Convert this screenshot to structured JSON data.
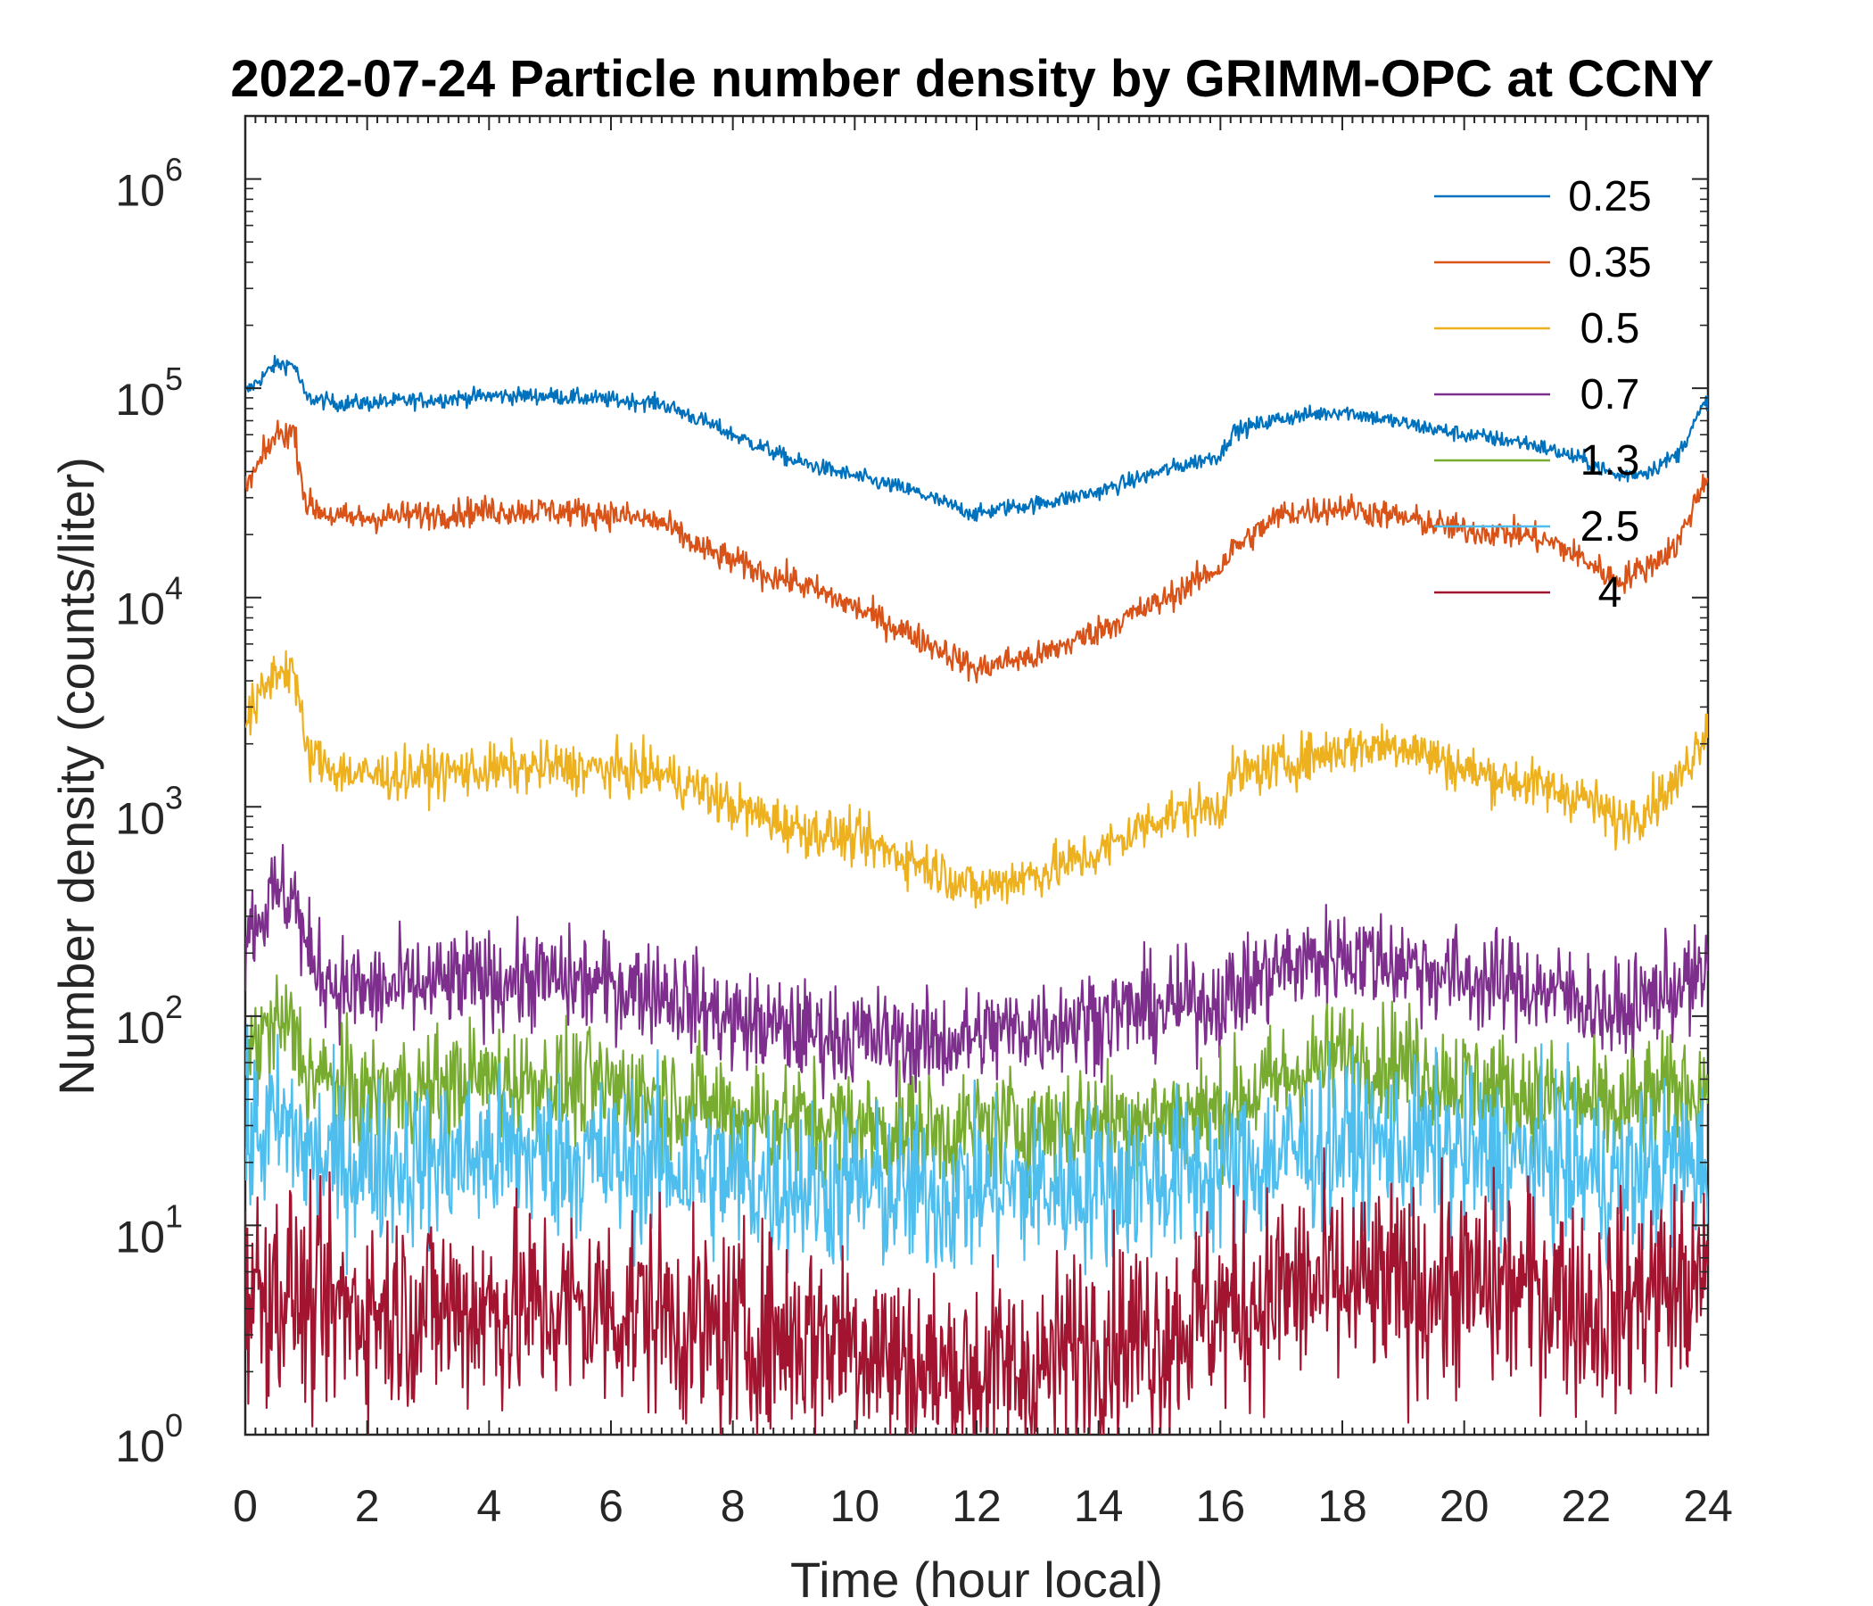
{
  "chart_data": {
    "type": "line",
    "title": "2022-07-24 Particle number density by GRIMM-OPC at CCNY",
    "xlabel": "Time (hour local)",
    "ylabel": "Number density (counts/liter)",
    "xlim": [
      0,
      24
    ],
    "ylim": [
      1,
      2000000
    ],
    "yscale": "log",
    "x_ticks": [
      "0",
      "2",
      "4",
      "6",
      "8",
      "10",
      "12",
      "14",
      "16",
      "18",
      "20",
      "22",
      "24"
    ],
    "y_ticks": [
      {
        "base": "10",
        "exp": "0"
      },
      {
        "base": "10",
        "exp": "1"
      },
      {
        "base": "10",
        "exp": "2"
      },
      {
        "base": "10",
        "exp": "3"
      },
      {
        "base": "10",
        "exp": "4"
      },
      {
        "base": "10",
        "exp": "5"
      },
      {
        "base": "10",
        "exp": "6"
      }
    ],
    "legend_position": "top-right",
    "grid": false,
    "x": [
      0,
      0.5,
      0.8,
      1,
      1.5,
      2,
      3,
      4,
      5,
      6,
      6.8,
      7.5,
      8,
      8.5,
      9,
      10,
      11,
      11.5,
      12,
      12.5,
      13,
      14,
      15,
      16,
      16.2,
      17,
      18,
      19,
      20,
      21,
      21.5,
      22,
      22.5,
      23,
      23.5,
      24
    ],
    "series": [
      {
        "name": "0.25",
        "color": "#0072BD",
        "noise": 0.02,
        "values": [
          95000,
          130000,
          130000,
          90000,
          85000,
          85000,
          88000,
          92000,
          92000,
          88000,
          85000,
          70000,
          60000,
          52000,
          45000,
          38000,
          32000,
          28000,
          25000,
          27000,
          28000,
          32000,
          40000,
          48000,
          62000,
          72000,
          78000,
          68000,
          60000,
          55000,
          50000,
          45000,
          38000,
          40000,
          48000,
          90000
        ]
      },
      {
        "name": "0.35",
        "color": "#D95319",
        "noise": 0.035,
        "values": [
          33000,
          60000,
          62000,
          28000,
          24000,
          24000,
          25000,
          26000,
          26000,
          25000,
          23000,
          17000,
          15000,
          13000,
          12000,
          9000,
          6500,
          5500,
          4500,
          5000,
          5200,
          7000,
          9500,
          14000,
          17000,
          25000,
          27000,
          24000,
          21000,
          20000,
          18000,
          15000,
          12000,
          14000,
          18000,
          40000
        ]
      },
      {
        "name": "0.5",
        "color": "#EDB120",
        "noise": 0.06,
        "values": [
          2500,
          4500,
          4600,
          1800,
          1500,
          1400,
          1450,
          1500,
          1550,
          1500,
          1450,
          1200,
          1000,
          900,
          800,
          700,
          550,
          480,
          400,
          450,
          480,
          600,
          900,
          1000,
          1400,
          1600,
          1900,
          2000,
          1500,
          1300,
          1200,
          1100,
          850,
          1000,
          1300,
          2500
        ]
      },
      {
        "name": "0.7",
        "color": "#7E2F8E",
        "noise": 0.12,
        "values": [
          250,
          380,
          390,
          200,
          140,
          130,
          140,
          150,
          150,
          140,
          135,
          110,
          95,
          90,
          85,
          80,
          75,
          75,
          80,
          85,
          90,
          100,
          110,
          120,
          130,
          170,
          200,
          180,
          150,
          140,
          130,
          120,
          100,
          120,
          140,
          150
        ]
      },
      {
        "name": "1.3",
        "color": "#77AC30",
        "noise": 0.14,
        "values": [
          65,
          90,
          85,
          55,
          45,
          42,
          45,
          50,
          48,
          45,
          42,
          38,
          35,
          33,
          32,
          30,
          28,
          28,
          30,
          30,
          30,
          32,
          33,
          35,
          38,
          50,
          65,
          60,
          48,
          42,
          40,
          38,
          35,
          40,
          45,
          45
        ]
      },
      {
        "name": "2.5",
        "color": "#4DBEEE",
        "noise": 0.2,
        "values": [
          25,
          30,
          28,
          22,
          20,
          20,
          20,
          22,
          22,
          20,
          20,
          18,
          17,
          16,
          16,
          15,
          14,
          14,
          15,
          15,
          15,
          16,
          17,
          18,
          18,
          22,
          25,
          24,
          22,
          20,
          20,
          18,
          16,
          18,
          20,
          20
        ]
      },
      {
        "name": "4",
        "color": "#A2142F",
        "noise": 0.25,
        "values": [
          5,
          5,
          5,
          4,
          4,
          4,
          4,
          4,
          4,
          4,
          4,
          3,
          3,
          3,
          3,
          3,
          2,
          2,
          2,
          2,
          2,
          3,
          3,
          4,
          4,
          5,
          5,
          5,
          5,
          5,
          5,
          4,
          4,
          5,
          5,
          5
        ]
      }
    ]
  }
}
